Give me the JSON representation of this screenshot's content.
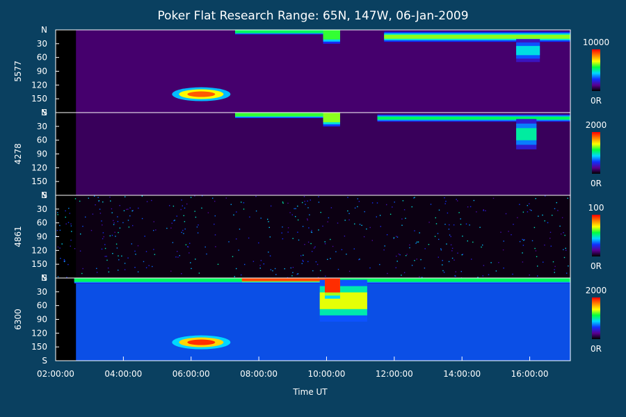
{
  "chart_data": {
    "type": "heatmap",
    "title": "Poker Flat Research Range: 65N, 147W, 06-Jan-2009",
    "xlabel": "Time UT",
    "x_tick_labels": [
      "02:00:00",
      "04:00:00",
      "06:00:00",
      "08:00:00",
      "10:00:00",
      "12:00:00",
      "14:00:00",
      "16:00:00"
    ],
    "x_range_hours": [
      2.0,
      17.2
    ],
    "y_tick_labels": [
      "N",
      "30",
      "60",
      "90",
      "120",
      "150",
      "S"
    ],
    "y_range": [
      0,
      180
    ],
    "colorscale": [
      "#000000",
      "#5a0090",
      "#1030ff",
      "#00d8ff",
      "#00ff40",
      "#ffff00",
      "#ff8000",
      "#ff0000"
    ],
    "panels": [
      {
        "label": "5577",
        "colorbar_max": "10000",
        "colorbar_min": "0R",
        "background_level": 0.12,
        "features": [
          {
            "kind": "arc",
            "t_start": 7.3,
            "t_end": 10.2,
            "scan_top": 0,
            "scan_bottom": 10,
            "intensity": 0.55
          },
          {
            "kind": "arc",
            "t_start": 11.7,
            "t_end": 17.2,
            "scan_top": 4,
            "scan_bottom": 26,
            "intensity": 0.65
          },
          {
            "kind": "arc",
            "t_start": 15.6,
            "t_end": 16.3,
            "scan_top": 20,
            "scan_bottom": 70,
            "intensity": 0.45
          },
          {
            "kind": "arc",
            "t_start": 9.9,
            "t_end": 10.4,
            "scan_top": 0,
            "scan_bottom": 30,
            "intensity": 0.6
          },
          {
            "kind": "spot",
            "t": 6.3,
            "scan": 140,
            "intensity": 0.9
          }
        ]
      },
      {
        "label": "4278",
        "colorbar_max": "2000",
        "colorbar_min": "0R",
        "background_level": 0.1,
        "features": [
          {
            "kind": "arc",
            "t_start": 7.3,
            "t_end": 10.2,
            "scan_top": 0,
            "scan_bottom": 12,
            "intensity": 0.6
          },
          {
            "kind": "arc",
            "t_start": 11.5,
            "t_end": 17.2,
            "scan_top": 4,
            "scan_bottom": 20,
            "intensity": 0.55
          },
          {
            "kind": "arc",
            "t_start": 15.6,
            "t_end": 16.2,
            "scan_top": 14,
            "scan_bottom": 80,
            "intensity": 0.5
          },
          {
            "kind": "arc",
            "t_start": 9.9,
            "t_end": 10.4,
            "scan_top": 0,
            "scan_bottom": 30,
            "intensity": 0.65
          }
        ]
      },
      {
        "label": "4861",
        "colorbar_max": "100",
        "colorbar_min": "0R",
        "background_level": 0.02,
        "features": []
      },
      {
        "label": "6300",
        "colorbar_max": "2000",
        "colorbar_min": "0R",
        "background_level": 0.32,
        "features": [
          {
            "kind": "arc",
            "t_start": 2.55,
            "t_end": 17.2,
            "scan_top": 0,
            "scan_bottom": 12,
            "intensity": 0.55
          },
          {
            "kind": "arc",
            "t_start": 7.5,
            "t_end": 10.3,
            "scan_top": 0,
            "scan_bottom": 10,
            "intensity": 0.92
          },
          {
            "kind": "arc",
            "t_start": 9.8,
            "t_end": 11.2,
            "scan_top": 4,
            "scan_bottom": 95,
            "intensity": 0.7
          },
          {
            "kind": "arc",
            "t_start": 9.95,
            "t_end": 10.4,
            "scan_top": 0,
            "scan_bottom": 45,
            "intensity": 0.95
          },
          {
            "kind": "spot",
            "t": 6.3,
            "scan": 140,
            "intensity": 0.95
          }
        ]
      }
    ]
  }
}
